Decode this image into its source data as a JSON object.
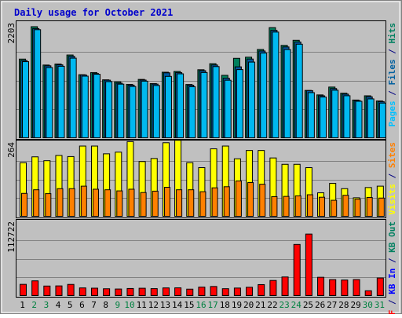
{
  "chart_data": {
    "title": "Daily usage for October 2021",
    "type": "bar",
    "days": [
      {
        "label": "1",
        "weekend": false
      },
      {
        "label": "2",
        "weekend": true
      },
      {
        "label": "3",
        "weekend": true
      },
      {
        "label": "4",
        "weekend": false
      },
      {
        "label": "5",
        "weekend": false
      },
      {
        "label": "6",
        "weekend": false
      },
      {
        "label": "7",
        "weekend": false
      },
      {
        "label": "8",
        "weekend": false
      },
      {
        "label": "9",
        "weekend": true
      },
      {
        "label": "10",
        "weekend": true
      },
      {
        "label": "11",
        "weekend": false
      },
      {
        "label": "12",
        "weekend": false
      },
      {
        "label": "13",
        "weekend": false
      },
      {
        "label": "14",
        "weekend": false
      },
      {
        "label": "15",
        "weekend": false
      },
      {
        "label": "16",
        "weekend": true
      },
      {
        "label": "17",
        "weekend": true
      },
      {
        "label": "18",
        "weekend": false
      },
      {
        "label": "19",
        "weekend": false
      },
      {
        "label": "20",
        "weekend": false
      },
      {
        "label": "21",
        "weekend": false
      },
      {
        "label": "22",
        "weekend": false
      },
      {
        "label": "23",
        "weekend": true
      },
      {
        "label": "24",
        "weekend": true
      },
      {
        "label": "25",
        "weekend": false
      },
      {
        "label": "26",
        "weekend": false
      },
      {
        "label": "27",
        "weekend": false
      },
      {
        "label": "28",
        "weekend": false
      },
      {
        "label": "29",
        "weekend": false
      },
      {
        "label": "30",
        "weekend": true
      },
      {
        "label": "31",
        "weekend": true
      }
    ],
    "panels": [
      {
        "id": "hits",
        "ymax": 2203,
        "ymax_label": "2203",
        "legend": [
          {
            "text": "Pages",
            "color": "#00c0ff"
          },
          {
            "text": " / ",
            "color": "#000080"
          },
          {
            "text": "Files",
            "color": "#0060a0"
          },
          {
            "text": " / ",
            "color": "#000080"
          },
          {
            "text": "Hits",
            "color": "#008060"
          }
        ],
        "series": [
          {
            "name": "Hits",
            "color": "#00805c",
            "values": [
              1523,
              2150,
              1408,
              1428,
              1602,
              1221,
              1262,
              1122,
              1082,
              1032,
              1130,
              1049,
              1269,
              1284,
              1031,
              1317,
              1434,
              1209,
              1538,
              1560,
              1709,
              2132,
              1788,
              1887,
              917,
              830,
              982,
              863,
              731,
              813,
              713
            ]
          },
          {
            "name": "Files",
            "color": "#0058a0",
            "values": [
              1496,
              2113,
              1393,
              1412,
              1576,
              1216,
              1243,
              1115,
              1057,
              1019,
              1117,
              1039,
              1257,
              1262,
              1018,
              1299,
              1409,
              1153,
              1373,
              1524,
              1680,
              2079,
              1758,
              1854,
              913,
              812,
              953,
              845,
              719,
              794,
              701
            ]
          },
          {
            "name": "Pages",
            "color": "#00b8f0",
            "values": [
              1473,
              2092,
              1360,
              1384,
              1541,
              1193,
              1230,
              1087,
              1038,
              993,
              1096,
              1012,
              1188,
              1238,
              988,
              1263,
              1378,
              1114,
              1320,
              1465,
              1640,
              2046,
              1708,
              1811,
              874,
              789,
              921,
              814,
              707,
              753,
              672
            ]
          }
        ]
      },
      {
        "id": "visits",
        "ymax": 264,
        "ymax_label": "264",
        "legend": [
          {
            "text": "Visits",
            "color": "#ffff00"
          },
          {
            "text": " / ",
            "color": "#000080"
          },
          {
            "text": "Sites",
            "color": "#ff8000"
          }
        ],
        "series": [
          {
            "name": "Visits",
            "color": "#ffff00",
            "values": [
              194,
              215,
              201,
              220,
              216,
              254,
              254,
              226,
              232,
              270,
              198,
              209,
              266,
              275,
              194,
              176,
              244,
              254,
              208,
              238,
              238,
              211,
              188,
              188,
              176,
              85,
              119,
              100,
              67,
              104,
              109
            ]
          },
          {
            "name": "Sites",
            "color": "#ff8000",
            "values": [
              83,
              96,
              82,
              100,
              100,
              109,
              98,
              96,
              92,
              98,
              86,
              91,
              105,
              96,
              96,
              89,
              103,
              107,
              128,
              122,
              116,
              71,
              72,
              74,
              78,
              69,
              58,
              76,
              62,
              68,
              66
            ]
          }
        ]
      },
      {
        "id": "kbytes",
        "ymax": 112722,
        "ymax_label": "112722",
        "legend": [
          {
            "text": "KB F",
            "color": "#ff0000"
          },
          {
            "text": " / ",
            "color": "#000080"
          },
          {
            "text": "KB In",
            "color": "#0000ff"
          },
          {
            "text": " / ",
            "color": "#000080"
          },
          {
            "text": "KB Out",
            "color": "#008060"
          }
        ],
        "series": [
          {
            "name": "KB F",
            "color": "#ff0000",
            "values": [
              17400,
              22800,
              14800,
              15000,
              17300,
              11900,
              11500,
              10600,
              10200,
              11000,
              11400,
              10800,
              11900,
              12000,
              10000,
              13100,
              14100,
              10700,
              11700,
              12900,
              17000,
              23400,
              28800,
              79000,
              95000,
              28300,
              24700,
              24100,
              24800,
              7500,
              27200
            ]
          }
        ]
      }
    ]
  }
}
